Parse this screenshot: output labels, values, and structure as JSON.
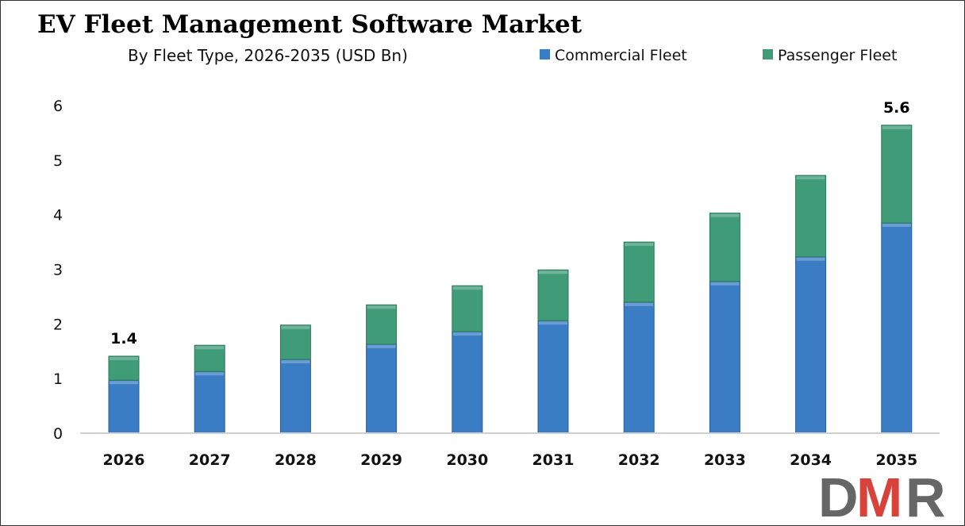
{
  "chart_data": {
    "type": "bar",
    "stacked": true,
    "title": "EV Fleet Management Software Market",
    "subtitle": "By Fleet Type, 2026-2035 (USD Bn)",
    "xlabel": "",
    "ylabel": "",
    "ylim": [
      0,
      6
    ],
    "yticks": [
      "0",
      "1",
      "2",
      "3",
      "4",
      "5",
      "6"
    ],
    "grid": false,
    "legend_position": "top-right",
    "categories": [
      "2026",
      "2027",
      "2028",
      "2029",
      "2030",
      "2031",
      "2032",
      "2033",
      "2034",
      "2035"
    ],
    "series": [
      {
        "name": "Commercial Fleet",
        "color": "#3a7dc4",
        "values": [
          0.97,
          1.13,
          1.35,
          1.63,
          1.86,
          2.06,
          2.4,
          2.78,
          3.23,
          3.85
        ]
      },
      {
        "name": "Passenger Fleet",
        "color": "#3f9b78",
        "values": [
          0.44,
          0.48,
          0.63,
          0.72,
          0.84,
          0.93,
          1.1,
          1.25,
          1.49,
          1.79
        ]
      }
    ],
    "data_labels": [
      {
        "category": "2026",
        "text": "1.4"
      },
      {
        "category": "2035",
        "text": "5.6"
      }
    ]
  },
  "logo": {
    "text": "DMR",
    "colors": [
      "#666666",
      "#d9423a"
    ]
  }
}
